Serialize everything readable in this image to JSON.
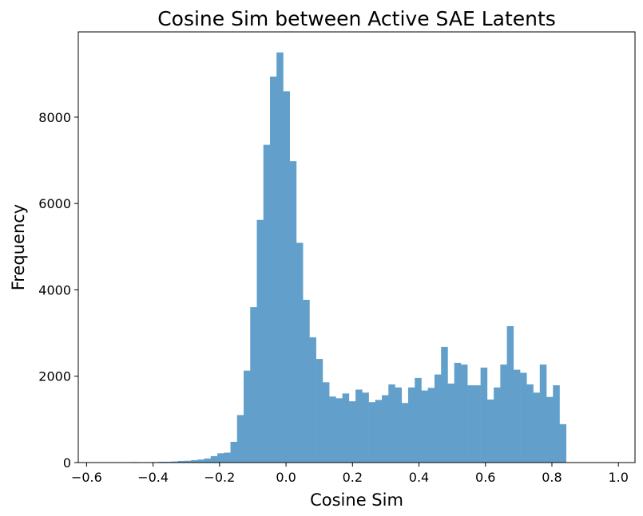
{
  "chart_data": {
    "type": "bar",
    "subtype": "histogram",
    "title": "Cosine Sim between Active SAE Latents",
    "xlabel": "Cosine Sim",
    "ylabel": "Frequency",
    "xlim": [
      -0.625,
      1.05
    ],
    "ylim": [
      0,
      9975
    ],
    "x_ticks": [
      -0.6,
      -0.4,
      -0.2,
      0.0,
      0.2,
      0.4,
      0.6,
      0.8,
      1.0
    ],
    "x_tick_labels": [
      "−0.6",
      "−0.4",
      "−0.2",
      "0.0",
      "0.2",
      "0.4",
      "0.6",
      "0.8",
      "1.0"
    ],
    "y_ticks": [
      0,
      2000,
      4000,
      6000,
      8000
    ],
    "y_tick_labels": [
      "0",
      "2000",
      "4000",
      "6000",
      "8000"
    ],
    "grid": false,
    "legend": false,
    "color": "#62a0cb",
    "bin_start": -0.6027,
    "bin_width": 0.0198,
    "values": [
      0,
      0,
      0,
      0,
      0,
      0,
      3,
      12,
      5,
      10,
      12,
      18,
      18,
      25,
      38,
      42,
      55,
      70,
      95,
      150,
      215,
      230,
      480,
      1100,
      2130,
      3600,
      5620,
      7360,
      8940,
      9500,
      8600,
      6980,
      5090,
      3770,
      2900,
      2400,
      1860,
      1530,
      1490,
      1600,
      1420,
      1690,
      1620,
      1400,
      1450,
      1560,
      1810,
      1740,
      1380,
      1740,
      1960,
      1670,
      1730,
      2040,
      2680,
      1830,
      2310,
      2270,
      1790,
      1790,
      2200,
      1460,
      1740,
      2270,
      3160,
      2150,
      2080,
      1810,
      1620,
      2270,
      1520,
      1790,
      890
    ]
  }
}
